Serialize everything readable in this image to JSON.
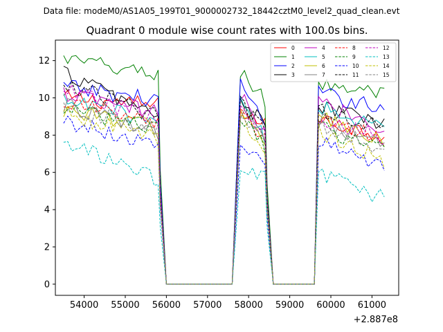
{
  "chart_data": {
    "type": "line",
    "suptitle": "Data file: modeM0/AS1A05_199T01_9000002732_18442cztM0_level2_quad_clean.evt",
    "title": "Quadrant 0 module wise count rates with 100.0s bins.",
    "xlabel": "",
    "ylabel": "",
    "x_offset_label": "+2.887e8",
    "xlim": [
      53300,
      61650
    ],
    "ylim": [
      -0.6,
      13.1
    ],
    "xticks": [
      54000,
      55000,
      56000,
      57000,
      58000,
      59000,
      60000,
      61000
    ],
    "xtick_labels": [
      "54000",
      "55000",
      "56000",
      "57000",
      "58000",
      "59000",
      "60000",
      "61000"
    ],
    "yticks": [
      0,
      2,
      4,
      6,
      8,
      10,
      12
    ],
    "ytick_labels": [
      "0",
      "2",
      "4",
      "6",
      "8",
      "10",
      "12"
    ],
    "legend_position": "top-right",
    "segments": [
      {
        "x_start": 53500,
        "x_end": 55800,
        "bins": 24,
        "drop_to": 56000
      },
      {
        "x_start": 57800,
        "x_end": 58400,
        "bins": 7,
        "drop_to": 58600,
        "rise_from": 57600
      },
      {
        "x_start": 59700,
        "x_end": 61300,
        "bins": 17,
        "rise_from": 59600
      }
    ],
    "zero_x": [
      55900,
      56000,
      56500,
      57000,
      57500,
      57800,
      58500,
      58600,
      59000,
      59500,
      59600
    ],
    "series": [
      {
        "name": "0",
        "color": "#ff0000",
        "dash": "solid",
        "levels": [
          10.0,
          9.6,
          9.4,
          8.5,
          8.8,
          8.0
        ]
      },
      {
        "name": "1",
        "color": "#008000",
        "dash": "solid",
        "levels": [
          12.1,
          11.2,
          11.5,
          9.8,
          10.8,
          10.2
        ]
      },
      {
        "name": "2",
        "color": "#0000ff",
        "dash": "solid",
        "levels": [
          10.6,
          9.9,
          10.8,
          8.6,
          10.2,
          9.5
        ]
      },
      {
        "name": "3",
        "color": "#000000",
        "dash": "solid",
        "levels": [
          11.4,
          9.0,
          10.0,
          8.4,
          9.6,
          8.6
        ]
      },
      {
        "name": "4",
        "color": "#bf00bf",
        "dash": "solid",
        "levels": [
          10.2,
          9.2,
          10.2,
          8.0,
          9.8,
          8.4
        ]
      },
      {
        "name": "5",
        "color": "#00bfbf",
        "dash": "solid",
        "levels": [
          9.8,
          8.8,
          9.8,
          7.8,
          9.6,
          8.2
        ]
      },
      {
        "name": "6",
        "color": "#bfbf00",
        "dash": "solid",
        "levels": [
          9.4,
          8.4,
          9.4,
          7.6,
          9.0,
          7.6
        ]
      },
      {
        "name": "7",
        "color": "#808080",
        "dash": "solid",
        "levels": [
          9.6,
          8.2,
          9.2,
          7.6,
          8.8,
          7.4
        ]
      },
      {
        "name": "8",
        "color": "#ff0000",
        "dash": "dashed",
        "levels": [
          9.8,
          8.6,
          9.2,
          7.8,
          8.8,
          7.8
        ]
      },
      {
        "name": "9",
        "color": "#008000",
        "dash": "dashed",
        "levels": [
          9.4,
          8.4,
          8.8,
          7.4,
          8.4,
          7.2
        ]
      },
      {
        "name": "10",
        "color": "#0000ff",
        "dash": "dashed",
        "levels": [
          8.8,
          7.4,
          7.8,
          6.6,
          7.6,
          6.4
        ]
      },
      {
        "name": "11",
        "color": "#000000",
        "dash": "dashed",
        "levels": [
          10.8,
          9.0,
          9.8,
          8.2,
          9.4,
          8.4
        ]
      },
      {
        "name": "12",
        "color": "#bf00bf",
        "dash": "dashed",
        "levels": [
          10.4,
          8.8,
          9.6,
          8.2,
          9.0,
          7.8
        ]
      },
      {
        "name": "13",
        "color": "#00bfbf",
        "dash": "dashed",
        "levels": [
          7.6,
          5.6,
          6.4,
          5.6,
          6.0,
          4.6
        ]
      },
      {
        "name": "14",
        "color": "#bfbf00",
        "dash": "dashed",
        "levels": [
          9.2,
          7.8,
          8.8,
          7.2,
          8.2,
          6.6
        ]
      },
      {
        "name": "15",
        "color": "#808080",
        "dash": "dashed",
        "levels": [
          9.6,
          8.2,
          9.0,
          7.6,
          8.6,
          7.2
        ]
      }
    ]
  }
}
